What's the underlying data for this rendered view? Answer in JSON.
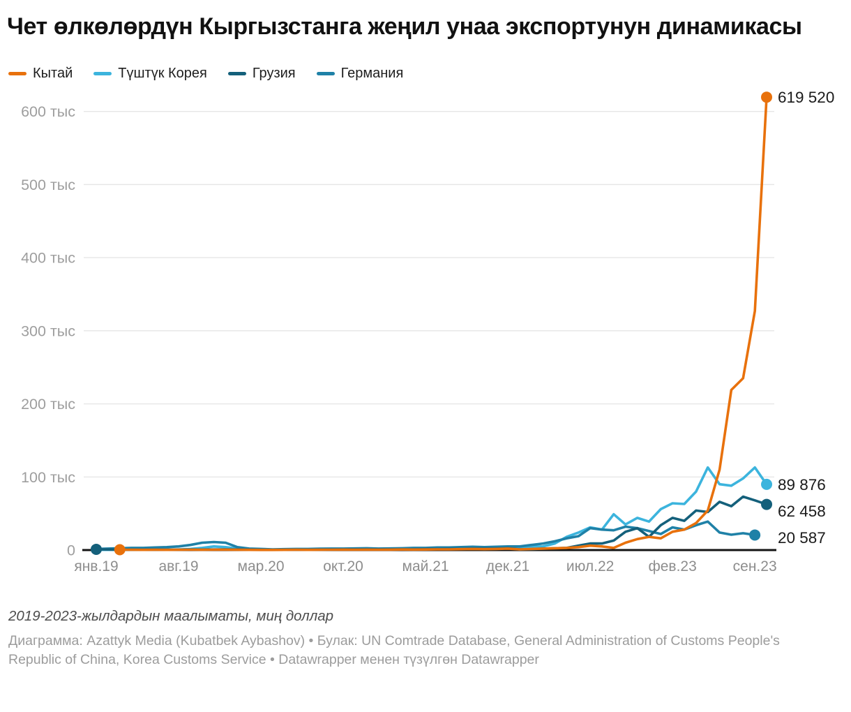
{
  "header": {
    "title": "Чет өлкөлөрдүн Кыргызстанга жеңил унаа экспортунун динамикасы"
  },
  "legend": {
    "items": [
      {
        "id": "china",
        "label": "Кытай",
        "color": "#e8710c"
      },
      {
        "id": "korea",
        "label": "Түштүк Корея",
        "color": "#3cb4dd"
      },
      {
        "id": "georgia",
        "label": "Грузия",
        "color": "#14607b"
      },
      {
        "id": "germany",
        "label": "Германия",
        "color": "#1f81a7"
      }
    ]
  },
  "chart_data": {
    "type": "line",
    "title": "Чет өлкөлөрдүн Кыргызстанга жеңил унаа экспортунун динамикасы",
    "unit": "миң доллар (thousand USD)",
    "grid": "horizontal",
    "legend_position": "top",
    "ylim": [
      0,
      600
    ],
    "y_ticks": [
      {
        "v": 0,
        "label": "0"
      },
      {
        "v": 100,
        "label": "100 тыс"
      },
      {
        "v": 200,
        "label": "200 тыс"
      },
      {
        "v": 300,
        "label": "300 тыс"
      },
      {
        "v": 400,
        "label": "400 тыс"
      },
      {
        "v": 500,
        "label": "500 тыс"
      },
      {
        "v": 600,
        "label": "600 тыс"
      }
    ],
    "x_months": [
      "2019-01",
      "2019-02",
      "2019-03",
      "2019-04",
      "2019-05",
      "2019-06",
      "2019-07",
      "2019-08",
      "2019-09",
      "2019-10",
      "2019-11",
      "2019-12",
      "2020-01",
      "2020-02",
      "2020-03",
      "2020-04",
      "2020-05",
      "2020-06",
      "2020-07",
      "2020-08",
      "2020-09",
      "2020-10",
      "2020-11",
      "2020-12",
      "2021-01",
      "2021-02",
      "2021-03",
      "2021-04",
      "2021-05",
      "2021-06",
      "2021-07",
      "2021-08",
      "2021-09",
      "2021-10",
      "2021-11",
      "2021-12",
      "2022-01",
      "2022-02",
      "2022-03",
      "2022-04",
      "2022-05",
      "2022-06",
      "2022-07",
      "2022-08",
      "2022-09",
      "2022-10",
      "2022-11",
      "2022-12",
      "2023-01",
      "2023-02",
      "2023-03",
      "2023-04",
      "2023-05",
      "2023-06",
      "2023-07",
      "2023-08",
      "2023-09",
      "2023-10"
    ],
    "x_tick_labels": [
      "янв.19",
      "авг.19",
      "мар.20",
      "окт.20",
      "май.21",
      "дек.21",
      "июл.22",
      "фев.23",
      "сен.23"
    ],
    "x_tick_month_indexes": [
      0,
      7,
      14,
      21,
      28,
      35,
      42,
      49,
      56
    ],
    "series": [
      {
        "name": "Кытай",
        "color": "#e8710c",
        "end_label": "619 520",
        "start_dot_index": 2,
        "values": [
          null,
          null,
          0.5,
          0.4,
          0.3,
          0.4,
          0.3,
          0.4,
          0.5,
          0.4,
          0.5,
          0.6,
          0.4,
          0.3,
          0.2,
          0.2,
          0.3,
          0.4,
          0.3,
          0.4,
          0.5,
          0.6,
          0.5,
          0.6,
          0.5,
          0.6,
          0.8,
          0.7,
          0.8,
          1,
          1,
          1.2,
          1.5,
          1.2,
          1.5,
          2,
          1,
          1.5,
          2,
          2.5,
          3,
          4,
          6,
          5,
          3,
          10,
          15,
          18,
          16,
          25,
          28,
          37,
          54,
          110,
          219,
          235,
          327,
          619.52
        ]
      },
      {
        "name": "Түштүк Корея",
        "color": "#3cb4dd",
        "end_label": "89 876",
        "values": [
          0.3,
          0.3,
          0.4,
          0.4,
          0.5,
          0.5,
          0.6,
          0.8,
          1.5,
          3,
          5,
          4,
          2,
          1,
          0.5,
          0.4,
          0.5,
          0.6,
          0.8,
          0.8,
          1,
          1,
          1.2,
          1.5,
          1,
          1.2,
          1.5,
          1.8,
          2,
          2.2,
          2.5,
          3,
          3.5,
          3,
          3.5,
          4,
          4,
          4.5,
          5,
          9,
          18,
          24,
          31,
          28,
          49,
          35,
          44,
          39,
          56,
          64,
          63,
          80,
          113,
          90,
          88,
          98,
          113,
          89.876
        ]
      },
      {
        "name": "Грузия",
        "color": "#14607b",
        "end_label": "62 458",
        "start_dot_index": 0,
        "values": [
          1,
          0.8,
          0.6,
          0.5,
          0.5,
          0.6,
          0.5,
          0.6,
          0.8,
          0.7,
          0.8,
          1,
          0.8,
          0.6,
          0.4,
          0.3,
          0.4,
          0.5,
          0.5,
          0.6,
          0.7,
          0.8,
          0.8,
          1,
          0.8,
          0.8,
          1,
          1,
          1.2,
          1.2,
          1.5,
          1.5,
          2,
          1.8,
          2,
          2.5,
          1,
          1.2,
          2,
          2.5,
          3,
          6,
          9,
          9,
          13,
          25,
          30,
          18,
          34,
          44,
          40,
          54,
          52,
          66,
          60,
          73,
          68,
          62.458
        ]
      },
      {
        "name": "Германия",
        "color": "#1f81a7",
        "end_label": "20 587",
        "values": [
          1.5,
          2,
          2.5,
          3,
          3,
          3.5,
          4,
          5,
          7,
          10,
          11,
          10,
          4,
          2,
          1.5,
          1,
          1.2,
          1.5,
          1.5,
          1.8,
          2,
          2,
          2.2,
          2.5,
          2,
          2.2,
          2.5,
          3,
          3,
          3.5,
          3.5,
          4,
          4.5,
          4,
          4.5,
          5,
          5,
          7,
          9,
          12,
          16,
          19,
          30,
          28,
          27,
          32,
          30,
          26,
          22,
          31,
          28,
          34,
          39,
          24,
          21,
          23,
          20.587,
          null
        ]
      }
    ]
  },
  "footer": {
    "note": "2019-2023-жылдардын маалыматы, миң доллар",
    "byline": "Диаграмма: Azattyk Media (Kubatbek Aybashov) • Булак: UN Comtrade Database, General Administration of Customs People's Republic of China, Korea Customs Service • Datawrapper менен түзүлгөн Datawrapper"
  }
}
